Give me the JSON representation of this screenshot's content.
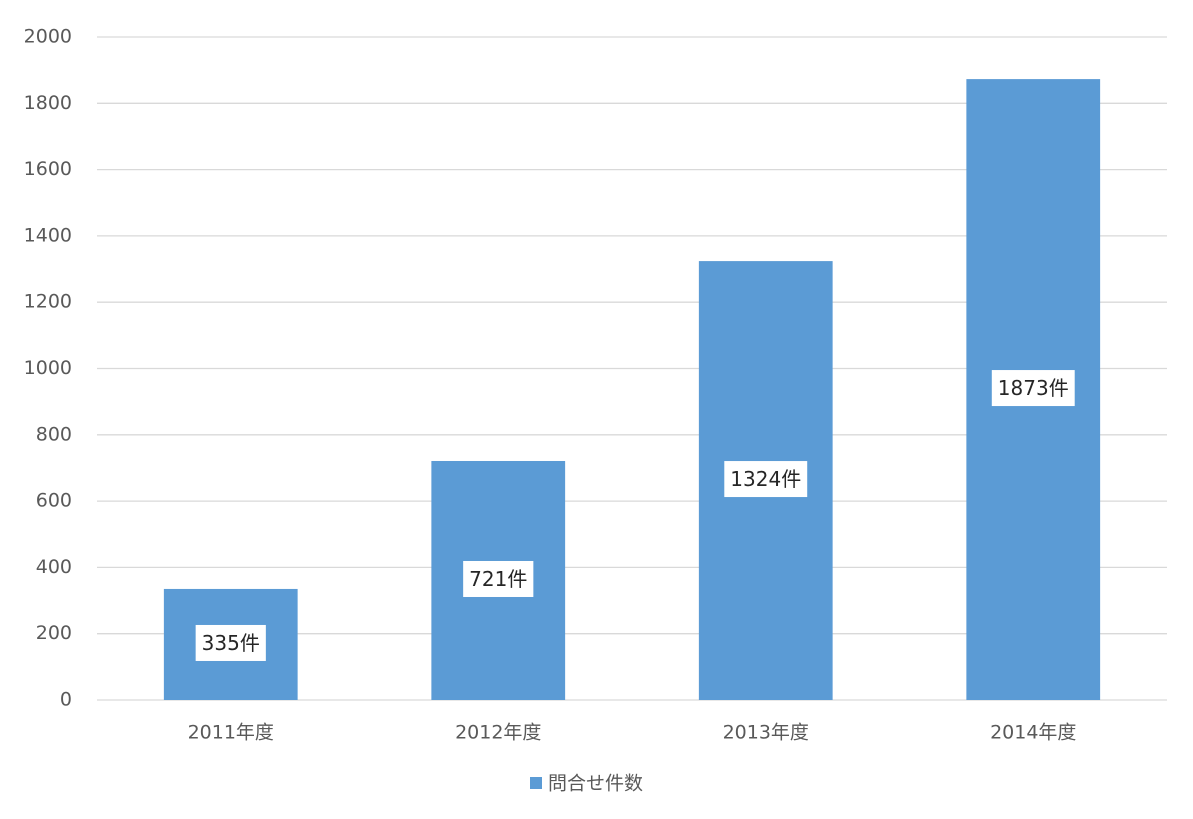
{
  "chart_data": {
    "type": "bar",
    "categories": [
      "2011年度",
      "2012年度",
      "2013年度",
      "2014年度"
    ],
    "series": [
      {
        "name": "問合せ件数",
        "color": "#5b9bd5",
        "values": [
          335,
          721,
          1324,
          1873
        ],
        "value_labels": [
          "335件",
          "721件",
          "1324件",
          "1873件"
        ]
      }
    ],
    "ylim": [
      0,
      2000
    ],
    "yticks": [
      0,
      200,
      400,
      600,
      800,
      1000,
      1200,
      1400,
      1600,
      1800,
      2000
    ],
    "grid": true,
    "legend": "bottom"
  }
}
